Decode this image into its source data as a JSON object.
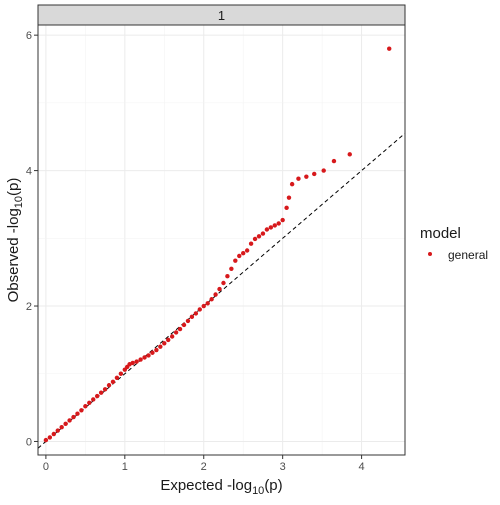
{
  "chart_data": {
    "type": "scatter",
    "facet_label": "1",
    "xlabel_main": "Expected -log",
    "xlabel_sub": "10",
    "xlabel_tail": "(p)",
    "ylabel_main": "Observed -log",
    "ylabel_sub": "10",
    "ylabel_tail": "(p)",
    "xlim": [
      -0.1,
      4.55
    ],
    "ylim": [
      -0.2,
      6.15
    ],
    "xticks": [
      0,
      1,
      2,
      3,
      4
    ],
    "yticks": [
      0,
      2,
      4,
      6
    ],
    "grid": true,
    "legend_position": "right",
    "legend": {
      "title": "model",
      "entries": [
        {
          "label": "general",
          "color": "#d7191c"
        }
      ]
    },
    "reference_line": {
      "type": "identity",
      "style": "dashed"
    },
    "series": [
      {
        "name": "general",
        "color": "#d7191c",
        "points": [
          [
            0.0,
            0.02
          ],
          [
            0.05,
            0.06
          ],
          [
            0.1,
            0.11
          ],
          [
            0.15,
            0.16
          ],
          [
            0.2,
            0.21
          ],
          [
            0.25,
            0.26
          ],
          [
            0.3,
            0.31
          ],
          [
            0.35,
            0.36
          ],
          [
            0.4,
            0.41
          ],
          [
            0.45,
            0.46
          ],
          [
            0.5,
            0.52
          ],
          [
            0.55,
            0.57
          ],
          [
            0.6,
            0.62
          ],
          [
            0.65,
            0.67
          ],
          [
            0.7,
            0.72
          ],
          [
            0.75,
            0.77
          ],
          [
            0.8,
            0.83
          ],
          [
            0.85,
            0.88
          ],
          [
            0.9,
            0.94
          ],
          [
            0.95,
            1.0
          ],
          [
            1.0,
            1.06
          ],
          [
            1.03,
            1.1
          ],
          [
            1.06,
            1.14
          ],
          [
            1.1,
            1.16
          ],
          [
            1.15,
            1.18
          ],
          [
            1.2,
            1.21
          ],
          [
            1.25,
            1.24
          ],
          [
            1.3,
            1.27
          ],
          [
            1.35,
            1.31
          ],
          [
            1.4,
            1.35
          ],
          [
            1.45,
            1.4
          ],
          [
            1.5,
            1.45
          ],
          [
            1.55,
            1.5
          ],
          [
            1.6,
            1.55
          ],
          [
            1.65,
            1.61
          ],
          [
            1.7,
            1.66
          ],
          [
            1.75,
            1.72
          ],
          [
            1.8,
            1.78
          ],
          [
            1.85,
            1.84
          ],
          [
            1.9,
            1.89
          ],
          [
            1.95,
            1.95
          ],
          [
            2.0,
            2.0
          ],
          [
            2.05,
            2.04
          ],
          [
            2.1,
            2.1
          ],
          [
            2.15,
            2.17
          ],
          [
            2.2,
            2.25
          ],
          [
            2.25,
            2.34
          ],
          [
            2.3,
            2.44
          ],
          [
            2.35,
            2.55
          ],
          [
            2.4,
            2.67
          ],
          [
            2.45,
            2.74
          ],
          [
            2.5,
            2.78
          ],
          [
            2.55,
            2.82
          ],
          [
            2.6,
            2.92
          ],
          [
            2.65,
            2.99
          ],
          [
            2.7,
            3.03
          ],
          [
            2.75,
            3.07
          ],
          [
            2.8,
            3.13
          ],
          [
            2.85,
            3.16
          ],
          [
            2.9,
            3.19
          ],
          [
            2.95,
            3.22
          ],
          [
            3.0,
            3.27
          ],
          [
            3.05,
            3.45
          ],
          [
            3.08,
            3.6
          ],
          [
            3.12,
            3.8
          ],
          [
            3.2,
            3.88
          ],
          [
            3.3,
            3.91
          ],
          [
            3.4,
            3.95
          ],
          [
            3.52,
            4.0
          ],
          [
            3.65,
            4.14
          ],
          [
            3.85,
            4.24
          ],
          [
            4.35,
            5.8
          ]
        ]
      }
    ]
  }
}
